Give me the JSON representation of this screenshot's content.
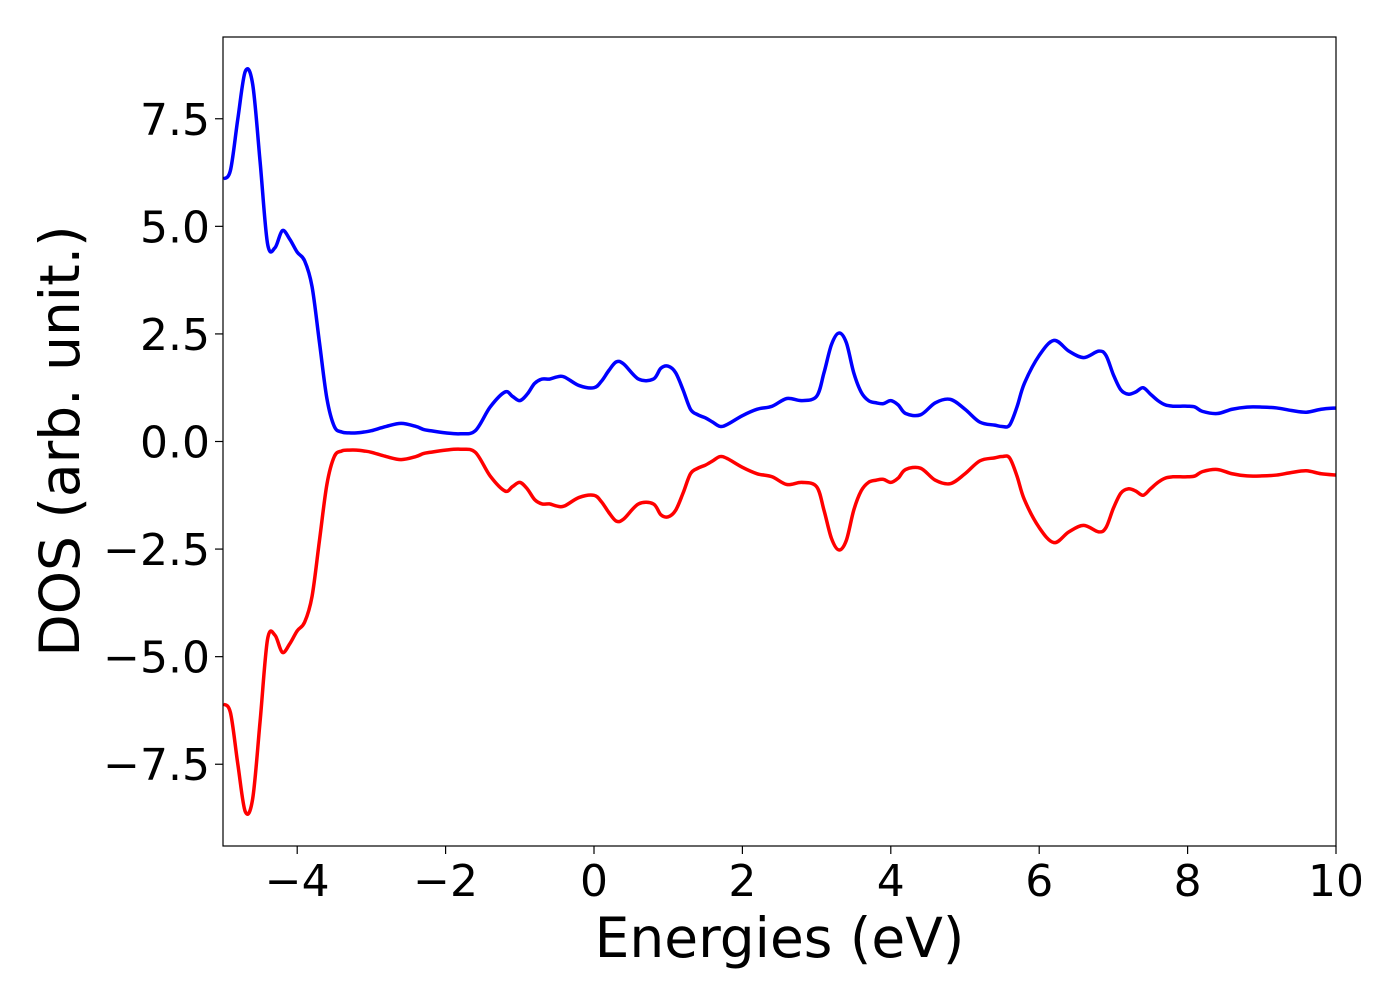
{
  "chart_data": {
    "type": "line",
    "title": "",
    "xlabel": "Energies (eV)",
    "ylabel": "DOS (arb. unit.)",
    "xlim": [
      -5,
      10
    ],
    "ylim": [
      -9.4,
      9.4
    ],
    "xticks": [
      -4,
      -2,
      0,
      2,
      4,
      6,
      8,
      10
    ],
    "xtick_labels": [
      "−4",
      "−2",
      "0",
      "2",
      "4",
      "6",
      "8",
      "10"
    ],
    "yticks": [
      -7.5,
      -5.0,
      -2.5,
      0.0,
      2.5,
      5.0,
      7.5
    ],
    "ytick_labels": [
      "−7.5",
      "−5.0",
      "−2.5",
      "0.0",
      "2.5",
      "5.0",
      "7.5"
    ],
    "grid": false,
    "legend": "none",
    "x": [
      -5.0,
      -4.9,
      -4.8,
      -4.7,
      -4.6,
      -4.5,
      -4.4,
      -4.3,
      -4.2,
      -4.1,
      -4.0,
      -3.9,
      -3.8,
      -3.7,
      -3.6,
      -3.5,
      -3.4,
      -3.3,
      -3.2,
      -3.1,
      -3.0,
      -2.8,
      -2.6,
      -2.4,
      -2.3,
      -2.2,
      -2.0,
      -1.8,
      -1.6,
      -1.4,
      -1.2,
      -1.1,
      -1.0,
      -0.9,
      -0.8,
      -0.7,
      -0.6,
      -0.5,
      -0.4,
      -0.2,
      0.0,
      0.1,
      0.2,
      0.3,
      0.4,
      0.6,
      0.8,
      0.9,
      1.0,
      1.1,
      1.2,
      1.3,
      1.4,
      1.5,
      1.6,
      1.7,
      1.8,
      2.0,
      2.2,
      2.4,
      2.6,
      2.8,
      3.0,
      3.1,
      3.2,
      3.3,
      3.4,
      3.5,
      3.6,
      3.7,
      3.8,
      3.9,
      4.0,
      4.1,
      4.2,
      4.4,
      4.6,
      4.8,
      5.0,
      5.2,
      5.4,
      5.5,
      5.6,
      5.7,
      5.8,
      6.0,
      6.2,
      6.4,
      6.6,
      6.8,
      6.9,
      7.0,
      7.1,
      7.2,
      7.3,
      7.4,
      7.5,
      7.6,
      7.7,
      7.8,
      7.9,
      8.0,
      8.1,
      8.2,
      8.4,
      8.6,
      8.8,
      9.0,
      9.2,
      9.4,
      9.6,
      9.8,
      10.0
    ],
    "series": [
      {
        "color": "#0000ff",
        "y": [
          6.1,
          6.3,
          7.5,
          8.6,
          8.3,
          6.5,
          4.6,
          4.5,
          4.9,
          4.7,
          4.4,
          4.2,
          3.6,
          2.3,
          1.0,
          0.35,
          0.22,
          0.2,
          0.2,
          0.22,
          0.25,
          0.35,
          0.42,
          0.35,
          0.28,
          0.25,
          0.2,
          0.18,
          0.25,
          0.8,
          1.15,
          1.05,
          0.95,
          1.1,
          1.35,
          1.45,
          1.45,
          1.5,
          1.5,
          1.3,
          1.25,
          1.4,
          1.65,
          1.85,
          1.8,
          1.45,
          1.45,
          1.7,
          1.75,
          1.6,
          1.2,
          0.75,
          0.62,
          0.55,
          0.45,
          0.35,
          0.4,
          0.6,
          0.75,
          0.82,
          1.0,
          0.95,
          1.05,
          1.6,
          2.25,
          2.52,
          2.3,
          1.6,
          1.15,
          0.95,
          0.9,
          0.88,
          0.95,
          0.85,
          0.65,
          0.62,
          0.9,
          0.98,
          0.75,
          0.45,
          0.38,
          0.35,
          0.38,
          0.8,
          1.35,
          2.0,
          2.35,
          2.1,
          1.95,
          2.1,
          2.0,
          1.55,
          1.2,
          1.1,
          1.15,
          1.25,
          1.1,
          0.95,
          0.85,
          0.82,
          0.82,
          0.82,
          0.8,
          0.7,
          0.65,
          0.75,
          0.8,
          0.8,
          0.78,
          0.72,
          0.68,
          0.75,
          0.78
        ]
      },
      {
        "color": "#ff0000",
        "y": [
          -6.1,
          -6.3,
          -7.5,
          -8.6,
          -8.3,
          -6.5,
          -4.6,
          -4.5,
          -4.9,
          -4.7,
          -4.4,
          -4.2,
          -3.6,
          -2.3,
          -1.0,
          -0.35,
          -0.22,
          -0.2,
          -0.2,
          -0.22,
          -0.25,
          -0.35,
          -0.42,
          -0.35,
          -0.28,
          -0.25,
          -0.2,
          -0.18,
          -0.25,
          -0.8,
          -1.15,
          -1.05,
          -0.95,
          -1.1,
          -1.35,
          -1.45,
          -1.45,
          -1.5,
          -1.5,
          -1.3,
          -1.25,
          -1.4,
          -1.65,
          -1.85,
          -1.8,
          -1.45,
          -1.45,
          -1.7,
          -1.75,
          -1.6,
          -1.2,
          -0.75,
          -0.62,
          -0.55,
          -0.45,
          -0.35,
          -0.4,
          -0.6,
          -0.75,
          -0.82,
          -1.0,
          -0.95,
          -1.05,
          -1.6,
          -2.25,
          -2.52,
          -2.3,
          -1.6,
          -1.15,
          -0.95,
          -0.9,
          -0.88,
          -0.95,
          -0.85,
          -0.65,
          -0.62,
          -0.9,
          -0.98,
          -0.75,
          -0.45,
          -0.38,
          -0.35,
          -0.38,
          -0.8,
          -1.35,
          -2.0,
          -2.35,
          -2.1,
          -1.95,
          -2.1,
          -2.0,
          -1.55,
          -1.2,
          -1.1,
          -1.15,
          -1.25,
          -1.1,
          -0.95,
          -0.85,
          -0.82,
          -0.82,
          -0.82,
          -0.8,
          -0.7,
          -0.65,
          -0.75,
          -0.8,
          -0.8,
          -0.78,
          -0.72,
          -0.68,
          -0.75,
          -0.78
        ]
      }
    ]
  }
}
